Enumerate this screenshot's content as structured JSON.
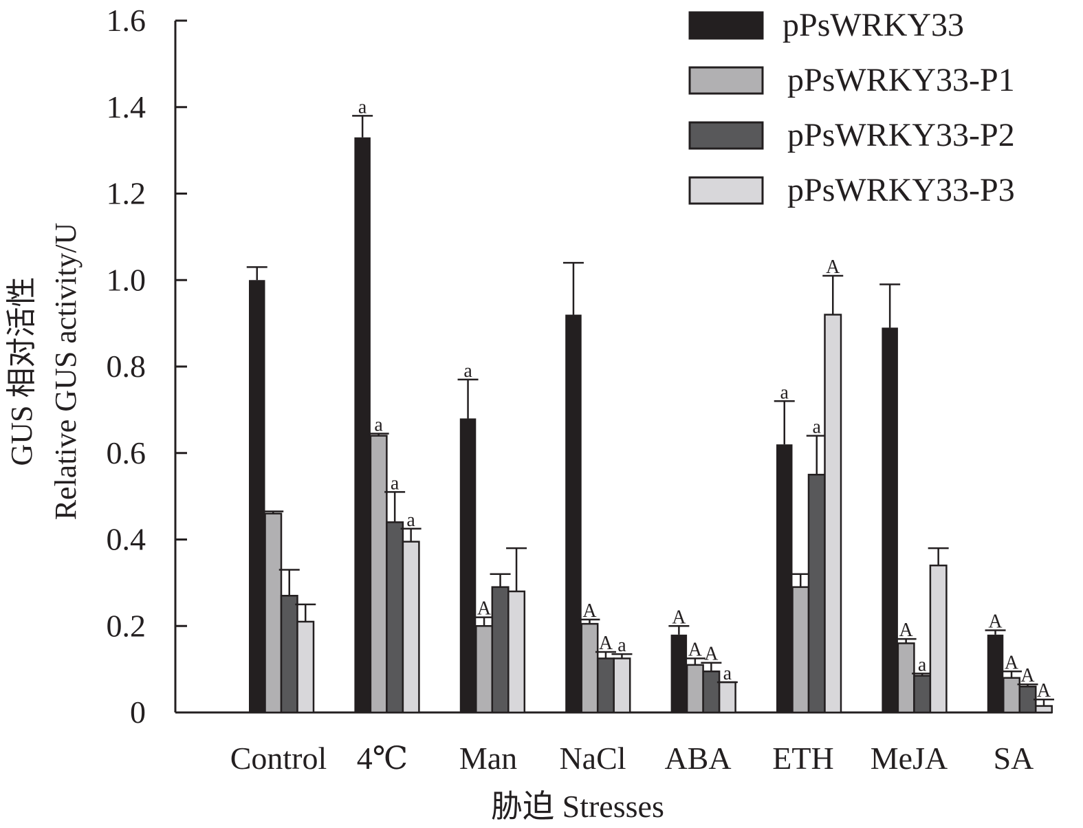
{
  "chart_data": {
    "type": "bar",
    "title": "",
    "xlabel": "胁迫 Stresses",
    "ylabel_line1": "GUS 相对活性",
    "ylabel_line2": "Relative GUS activity/U",
    "ylim": [
      0,
      1.6
    ],
    "yticks": [
      0,
      0.2,
      0.4,
      0.6,
      0.8,
      1.0,
      1.2,
      1.4,
      1.6
    ],
    "ytick_labels": [
      "0",
      "0.2",
      "0.4",
      "0.6",
      "0.8",
      "1.0",
      "1.2",
      "1.4",
      "1.6"
    ],
    "grid": false,
    "legend_position": "top-right",
    "categories": [
      "Control",
      "4℃",
      "Man",
      "NaCl",
      "ABA",
      "ETH",
      "MeJA",
      "SA"
    ],
    "series": [
      {
        "name": "pPsWRKY33",
        "color": "#231f20",
        "values": [
          1.0,
          1.33,
          0.68,
          0.92,
          0.18,
          0.62,
          0.89,
          0.18
        ],
        "error_upper": [
          1.03,
          1.38,
          0.77,
          1.04,
          0.2,
          0.72,
          0.99,
          0.19
        ],
        "labels": [
          "",
          "a",
          "a",
          "",
          "A",
          "a",
          "",
          "A"
        ]
      },
      {
        "name": "pPsWRKY33-P1",
        "color": "#b1b0b2",
        "values": [
          0.46,
          0.64,
          0.2,
          0.205,
          0.11,
          0.29,
          0.16,
          0.08
        ],
        "error_upper": [
          0.465,
          0.645,
          0.22,
          0.215,
          0.125,
          0.32,
          0.17,
          0.095
        ],
        "labels": [
          "",
          "a",
          "A",
          "A",
          "A",
          "",
          "A",
          "A"
        ]
      },
      {
        "name": "pPsWRKY33-P2",
        "color": "#58585a",
        "values": [
          0.27,
          0.44,
          0.29,
          0.125,
          0.095,
          0.55,
          0.085,
          0.06
        ],
        "error_upper": [
          0.33,
          0.51,
          0.32,
          0.14,
          0.115,
          0.64,
          0.09,
          0.065
        ],
        "labels": [
          "",
          "a",
          "",
          "A",
          "A",
          "a",
          "a",
          "A"
        ]
      },
      {
        "name": "pPsWRKY33-P3",
        "color": "#d8d7da",
        "values": [
          0.21,
          0.395,
          0.28,
          0.125,
          0.07,
          0.92,
          0.34,
          0.015
        ],
        "error_upper": [
          0.25,
          0.425,
          0.38,
          0.135,
          0.07,
          1.01,
          0.38,
          0.03
        ],
        "labels": [
          "",
          "a",
          "",
          "a",
          "a",
          "A",
          "",
          "A"
        ]
      }
    ]
  }
}
